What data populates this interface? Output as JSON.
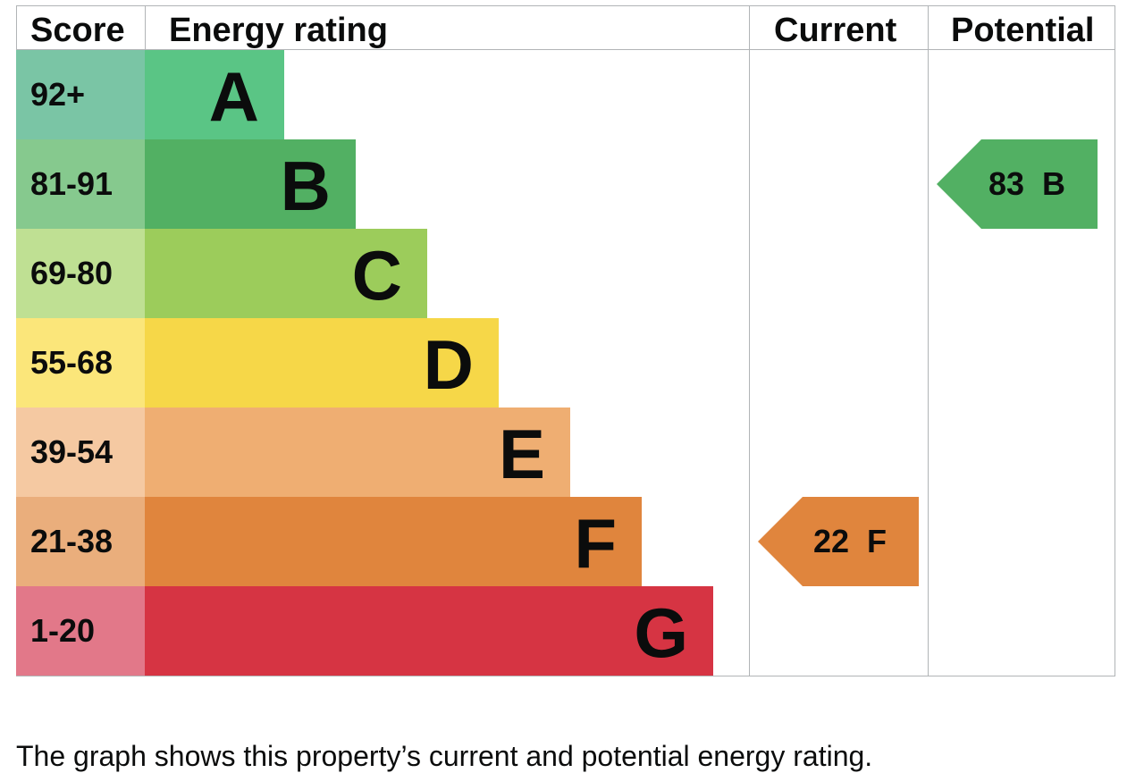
{
  "headers": {
    "score": "Score",
    "energy_rating": "Energy rating",
    "current": "Current",
    "potential": "Potential"
  },
  "bands": [
    {
      "score": "92+",
      "letter": "A",
      "bar_color": "#5ac585",
      "score_color": "#7ac5a5"
    },
    {
      "score": "81-91",
      "letter": "B",
      "bar_color": "#52b063",
      "score_color": "#86c98e"
    },
    {
      "score": "69-80",
      "letter": "C",
      "bar_color": "#9ccc5b",
      "score_color": "#bfe093"
    },
    {
      "score": "55-68",
      "letter": "D",
      "bar_color": "#f6d748",
      "score_color": "#fbe67a"
    },
    {
      "score": "39-54",
      "letter": "E",
      "bar_color": "#efae72",
      "score_color": "#f5c9a2"
    },
    {
      "score": "21-38",
      "letter": "F",
      "bar_color": "#e0853d",
      "score_color": "#eaae7c"
    },
    {
      "score": "1-20",
      "letter": "G",
      "bar_color": "#d63443",
      "score_color": "#e27889"
    }
  ],
  "current": {
    "value": "22",
    "band": "F",
    "label": "22  F",
    "color": "#e0853d"
  },
  "potential": {
    "value": "83",
    "band": "B",
    "label": "83  B",
    "color": "#52b063"
  },
  "description": "The graph shows this property’s current and potential energy rating.",
  "chart_data": {
    "type": "bar",
    "title": "Energy rating",
    "categories": [
      "A",
      "B",
      "C",
      "D",
      "E",
      "F",
      "G"
    ],
    "score_ranges": [
      "92+",
      "81-91",
      "69-80",
      "55-68",
      "39-54",
      "21-38",
      "1-20"
    ],
    "values": [
      1,
      2,
      3,
      4,
      5,
      6,
      7
    ],
    "current": {
      "score": 22,
      "band": "F"
    },
    "potential": {
      "score": 83,
      "band": "B"
    },
    "columns": [
      "Score",
      "Energy rating",
      "Current",
      "Potential"
    ]
  }
}
